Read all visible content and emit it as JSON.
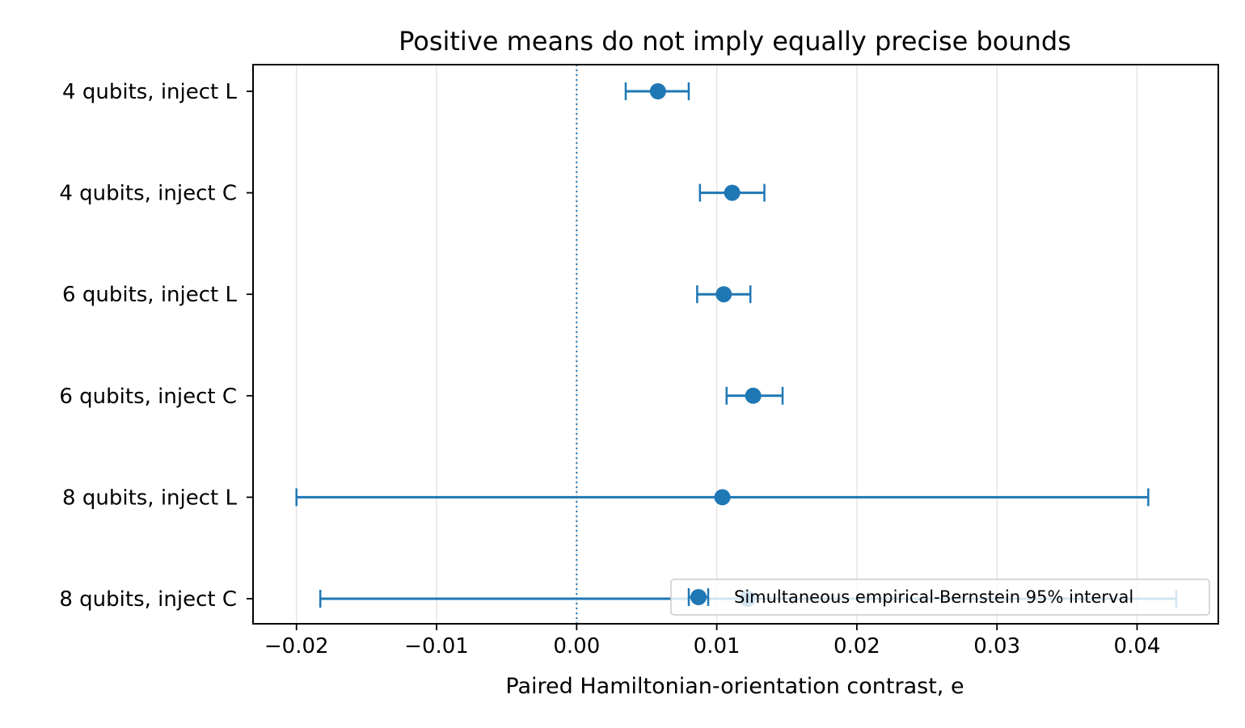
{
  "chart_data": {
    "type": "scatter",
    "title": "Positive means do not imply equally precise bounds",
    "xlabel": "Paired Hamiltonian-orientation contrast, e",
    "ylabel": "",
    "xlim": [
      -0.0231,
      0.0458
    ],
    "xticks": [
      -0.02,
      -0.01,
      0.0,
      0.01,
      0.02,
      0.03,
      0.04
    ],
    "xtick_labels": [
      "−0.02",
      "−0.01",
      "0.00",
      "0.01",
      "0.02",
      "0.03",
      "0.04"
    ],
    "categories": [
      "4 qubits, inject L",
      "4 qubits, inject C",
      "6 qubits, inject L",
      "6 qubits, inject C",
      "8 qubits, inject L",
      "8 qubits, inject C"
    ],
    "series": [
      {
        "name": "Simultaneous empirical-Bernstein 95% interval",
        "values": [
          0.0058,
          0.0111,
          0.0105,
          0.0126,
          0.0104,
          0.0122
        ],
        "lower": [
          0.0035,
          0.0088,
          0.0086,
          0.0107,
          -0.02,
          -0.0183
        ],
        "upper": [
          0.008,
          0.0134,
          0.0124,
          0.0147,
          0.0408,
          0.0428
        ]
      }
    ],
    "reference_line": {
      "x": 0.0,
      "style": "dotted"
    },
    "grid": "vertical",
    "legend_position": "lower-right",
    "colors": {
      "series": "#1f77b4",
      "grid": "#e6e6e6",
      "axes": "#000000"
    }
  }
}
